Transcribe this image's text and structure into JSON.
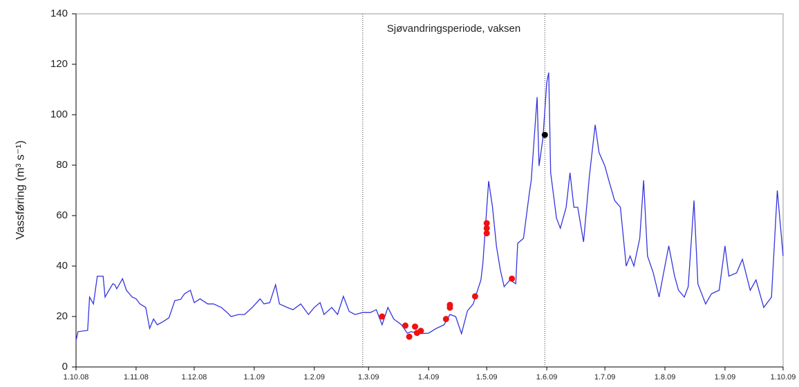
{
  "chart_data": {
    "type": "line",
    "ylabel": "Vassføring (m³ s⁻¹)",
    "annotation": "Sjøvandringsperiode, vaksen",
    "period": [
      "26.2.09",
      "31.5.09"
    ],
    "xlim": [
      "1.10.08",
      "1.10.09"
    ],
    "xticks": [
      "1.10.08",
      "1.11.08",
      "1.12.08",
      "1.1.09",
      "1.2.09",
      "1.3.09",
      "1.4.09",
      "1.5.09",
      "1.6.09",
      "1.7.09",
      "1.8.09",
      "1.9.09",
      "1.10.09"
    ],
    "ylim": [
      0,
      140
    ],
    "yticks": [
      0,
      20,
      40,
      60,
      80,
      100,
      120,
      140
    ],
    "series": [
      {
        "type": "line",
        "color": "#3333dd",
        "x": [
          "1.10.08",
          "2.10.08",
          "7.10.08",
          "8.10.08",
          "10.10.08",
          "12.10.08",
          "15.10.08",
          "16.10.08",
          "18.10.08",
          "20.10.08",
          "21.10.08",
          "22.10.08",
          "25.10.08",
          "27.10.08",
          "30.10.08",
          "1.11.08",
          "3.11.08",
          "6.11.08",
          "8.11.08",
          "10.11.08",
          "12.11.08",
          "15.11.08",
          "18.11.08",
          "21.11.08",
          "24.11.08",
          "26.11.08",
          "29.11.08",
          "1.12.08",
          "4.12.08",
          "8.12.08",
          "11.12.08",
          "15.12.08",
          "18.12.08",
          "20.12.08",
          "24.12.08",
          "27.12.08",
          "31.12.08",
          "4.1.09",
          "6.1.09",
          "9.1.09",
          "12.1.09",
          "14.1.09",
          "18.1.09",
          "21.1.09",
          "25.1.09",
          "29.1.09",
          "1.2.09",
          "4.2.09",
          "6.2.09",
          "10.2.09",
          "13.2.09",
          "16.2.09",
          "19.2.09",
          "22.2.09",
          "26.2.09",
          "2.3.09",
          "5.3.09",
          "8.3.09",
          "11.3.09",
          "14.3.09",
          "18.3.09",
          "21.3.09",
          "23.3.09",
          "27.3.09",
          "1.4.09",
          "5.4.09",
          "9.4.09",
          "12.4.09",
          "15.4.09",
          "18.4.09",
          "21.4.09",
          "24.4.09",
          "28.4.09",
          "29.4.09",
          "2.5.09",
          "4.5.09",
          "6.5.09",
          "8.5.09",
          "10.5.09",
          "13.5.09",
          "16.5.09",
          "17.5.09",
          "20.5.09",
          "23.5.09",
          "24.5.09",
          "27.5.09",
          "28.5.09",
          "30.5.09",
          "1.6.09",
          "2.6.09",
          "3.6.09",
          "6.6.09",
          "8.6.09",
          "11.6.09",
          "13.6.09",
          "15.6.09",
          "17.6.09",
          "20.6.09",
          "23.6.09",
          "26.6.09",
          "28.6.09",
          "1.7.09",
          "3.7.09",
          "6.7.09",
          "9.7.09",
          "12.7.09",
          "14.7.09",
          "16.7.09",
          "19.7.09",
          "21.7.09",
          "23.7.09",
          "26.7.09",
          "29.7.09",
          "31.7.09",
          "3.8.09",
          "6.8.09",
          "8.8.09",
          "11.8.09",
          "13.8.09",
          "16.8.09",
          "18.8.09",
          "22.8.09",
          "25.8.09",
          "29.8.09",
          "1.9.09",
          "3.9.09",
          "7.9.09",
          "10.9.09",
          "14.9.09",
          "17.9.09",
          "21.9.09",
          "25.9.09",
          "28.9.09",
          "1.10.09"
        ],
        "values": [
          10.4,
          14,
          14.5,
          27.7,
          25,
          36,
          36,
          27.7,
          30.4,
          33,
          32.6,
          31,
          35,
          30.4,
          27.7,
          27,
          25,
          23.6,
          15.3,
          19,
          16.7,
          18,
          19.5,
          26.3,
          26.8,
          29,
          30.4,
          25.5,
          27,
          25,
          25,
          23.6,
          21.6,
          20,
          20.8,
          20.8,
          23.6,
          27,
          25,
          25.5,
          32.6,
          25,
          23.6,
          22.7,
          25,
          20.8,
          23.6,
          25.5,
          20.8,
          23.6,
          20.8,
          28,
          22,
          20.8,
          21.6,
          21.6,
          22.7,
          16.7,
          23.6,
          19,
          16.7,
          13.4,
          14,
          13.2,
          13.4,
          15.3,
          16.7,
          20.8,
          20,
          13.2,
          22.2,
          25,
          34.5,
          41,
          73.7,
          63.3,
          48,
          38.6,
          31.8,
          34.5,
          33,
          49,
          51,
          68.8,
          74,
          107,
          79.7,
          90.7,
          113,
          116.7,
          77,
          59,
          55,
          63.3,
          77,
          63.3,
          63.3,
          49.6,
          75.6,
          96,
          85,
          79.7,
          74,
          66,
          63.3,
          40,
          44,
          40,
          51,
          74,
          44,
          37.3,
          27.7,
          36,
          48,
          36,
          30.4,
          27.7,
          31.8,
          66,
          33,
          25,
          29,
          30.4,
          48,
          36,
          37.3,
          42.7,
          30.4,
          34.5,
          23.6,
          27.7,
          70,
          44
        ]
      },
      {
        "type": "scatter",
        "color": "#ee1111",
        "x": [
          "8.3.09",
          "20.3.09",
          "22.3.09",
          "25.3.09",
          "26.3.09",
          "28.3.09",
          "10.4.09",
          "12.4.09",
          "12.4.09",
          "25.4.09",
          "1.5.09",
          "1.5.09",
          "1.5.09",
          "14.5.09"
        ],
        "values": [
          20,
          16.4,
          12,
          16,
          13.5,
          14.3,
          19,
          24.6,
          23.5,
          28,
          57,
          55,
          53,
          35
        ]
      },
      {
        "type": "scatter",
        "color": "#000000",
        "x": [
          "31.5.09"
        ],
        "values": [
          92
        ]
      }
    ]
  }
}
